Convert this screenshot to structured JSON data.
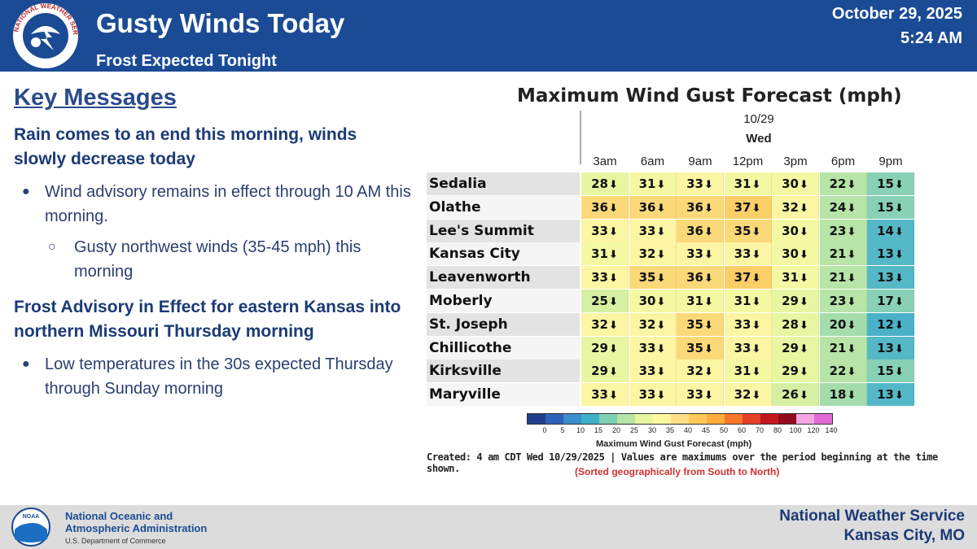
{
  "header": {
    "title": "Gusty Winds Today",
    "subtitle": "Frost Expected Tonight",
    "date": "October 29, 2025",
    "time": "5:24 AM",
    "logo_text": "NATIONAL WEATHER SERVICE"
  },
  "key_messages": {
    "title": "Key Messages",
    "heading1": "Rain comes to an end this morning, winds slowly decrease today",
    "bullet1": "Wind advisory remains in effect through 10 AM this morning.",
    "sub_bullet1": "Gusty northwest winds (35-45 mph) this morning",
    "heading2": "Frost Advisory in Effect for eastern Kansas into northern Missouri Thursday morning",
    "bullet2": "Low temperatures in the 30s expected Thursday through Sunday morning"
  },
  "chart_data": {
    "type": "table",
    "title": "Maximum Wind Gust Forecast (mph)",
    "date": "10/29",
    "day": "Wed",
    "columns": [
      "3am",
      "6am",
      "9am",
      "12pm",
      "3pm",
      "6pm",
      "9pm"
    ],
    "rows": [
      {
        "name": "Sedalia",
        "values": [
          28,
          31,
          33,
          31,
          30,
          22,
          15
        ]
      },
      {
        "name": "Olathe",
        "values": [
          36,
          36,
          36,
          37,
          32,
          24,
          15
        ]
      },
      {
        "name": "Lee's Summit",
        "values": [
          33,
          33,
          36,
          35,
          30,
          23,
          14
        ]
      },
      {
        "name": "Kansas City",
        "values": [
          31,
          32,
          33,
          33,
          30,
          21,
          13
        ]
      },
      {
        "name": "Leavenworth",
        "values": [
          33,
          35,
          36,
          37,
          31,
          21,
          13
        ]
      },
      {
        "name": "Moberly",
        "values": [
          25,
          30,
          31,
          31,
          29,
          23,
          17
        ]
      },
      {
        "name": "St. Joseph",
        "values": [
          32,
          32,
          35,
          33,
          28,
          20,
          12
        ]
      },
      {
        "name": "Chillicothe",
        "values": [
          29,
          33,
          35,
          33,
          29,
          21,
          13
        ]
      },
      {
        "name": "Kirksville",
        "values": [
          29,
          33,
          32,
          31,
          29,
          22,
          15
        ]
      },
      {
        "name": "Maryville",
        "values": [
          33,
          33,
          33,
          32,
          26,
          18,
          13
        ]
      }
    ],
    "direction_glyph": "🡻",
    "colorbar_ticks": [
      "0",
      "5",
      "10",
      "15",
      "20",
      "25",
      "30",
      "35",
      "40",
      "45",
      "50",
      "60",
      "70",
      "80",
      "100",
      "120",
      "140"
    ],
    "colorbar_colors": [
      "#1f3f8c",
      "#2c62b8",
      "#3a8ec9",
      "#3fb0c9",
      "#7fcfb3",
      "#b8e4a6",
      "#e6f5a0",
      "#fff6a0",
      "#ffe089",
      "#ffc95a",
      "#ffad3a",
      "#f7772b",
      "#e4402a",
      "#c3171f",
      "#8f0b1c",
      "#f4a6e3",
      "#e46ad6"
    ],
    "colorbar_label": "Maximum Wind Gust Forecast (mph)",
    "created_note": "Created: 4 am CDT Wed 10/29/2025  |  Values are maximums over the period beginning at the time shown.",
    "sorted_note": "(Sorted geographically from South to North)"
  },
  "footer": {
    "noaa_name_line1": "National Oceanic and",
    "noaa_name_line2": "Atmospheric Administration",
    "noaa_dept": "U.S. Department of Commerce",
    "noaa_logo_text": "NOAA",
    "office_line1": "National Weather Service",
    "office_line2": "Kansas City, MO"
  }
}
